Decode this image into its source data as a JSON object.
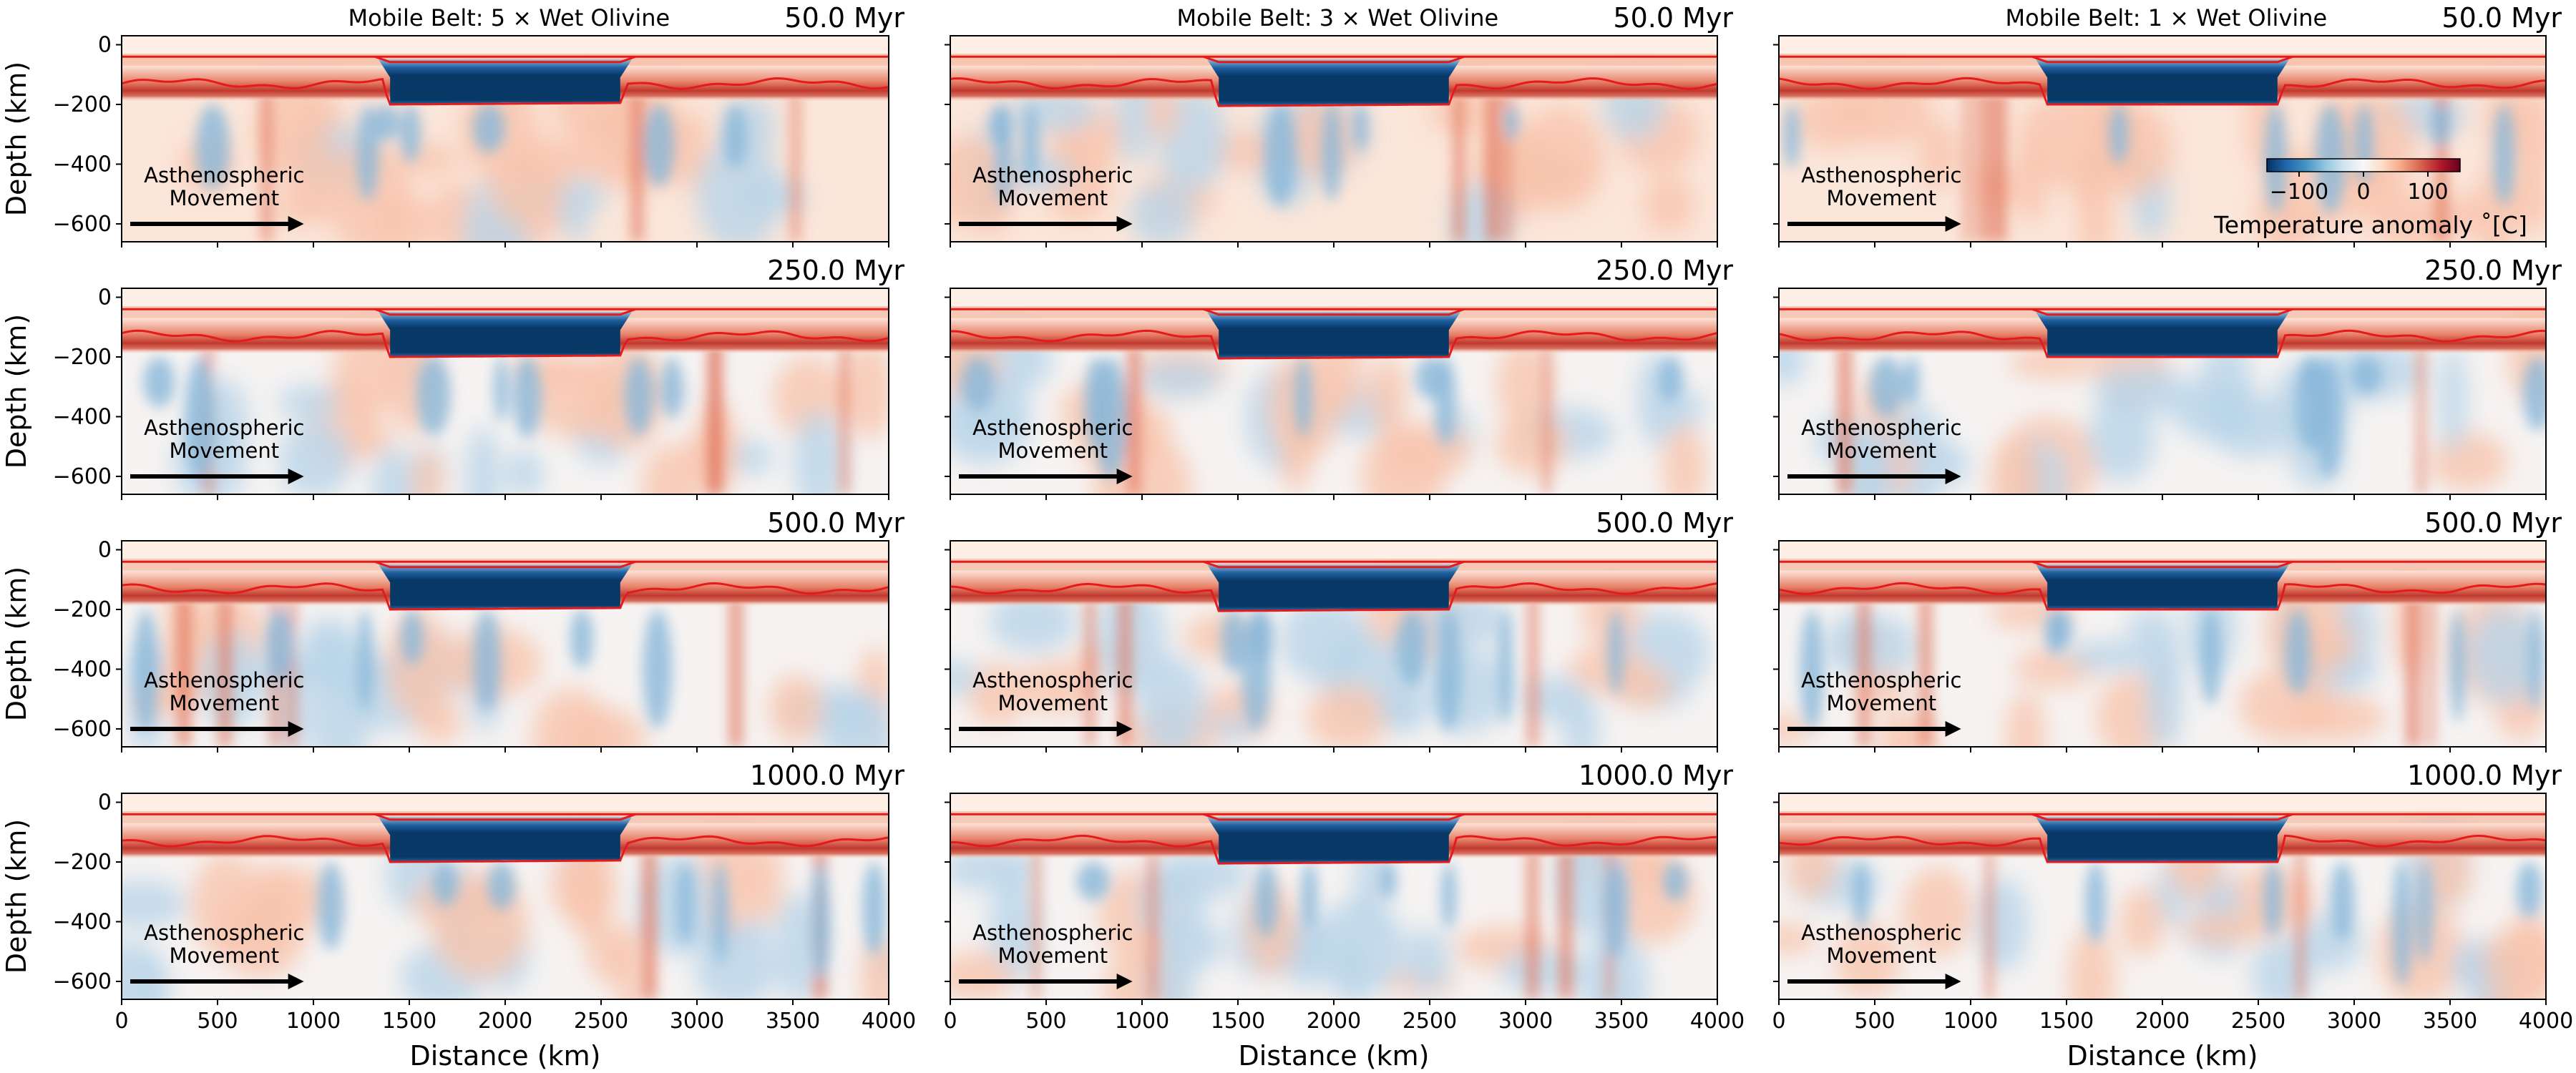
{
  "chart_data": {
    "type": "heatmap",
    "description_layout": "3 columns x 4 rows grid of temperature-anomaly cross sections",
    "columns": [
      {
        "title": "Mobile Belt: 5 × Wet Olivine",
        "craton_base": [
          [
            1400,
            -200
          ],
          [
            2600,
            -195
          ]
        ]
      },
      {
        "title": "Mobile Belt: 3 × Wet Olivine",
        "craton_base": [
          [
            1400,
            -205
          ],
          [
            2600,
            -200
          ]
        ]
      },
      {
        "title": "Mobile Belt: 1 × Wet Olivine",
        "craton_base": [
          [
            1400,
            -200
          ],
          [
            2600,
            -200
          ]
        ]
      }
    ],
    "rows": [
      {
        "time_label": "50.0 Myr"
      },
      {
        "time_label": "250.0 Myr"
      },
      {
        "time_label": "500.0 Myr"
      },
      {
        "time_label": "1000.0 Myr"
      }
    ],
    "xlabel": "Distance (km)",
    "ylabel": "Depth (km)",
    "xlim": [
      0,
      4000
    ],
    "ylim": [
      -660,
      30
    ],
    "x_ticks": [
      0,
      500,
      1000,
      1500,
      2000,
      2500,
      3000,
      3500,
      4000
    ],
    "y_ticks": [
      0,
      -200,
      -400,
      -600
    ],
    "craton_extent_km": [
      1400,
      2600
    ],
    "lithosphere_base_km": -130,
    "crust_line_km": -40,
    "arrow_label": "Asthenospheric\nMovement",
    "arrow_label_lines": [
      "Asthenospheric",
      "Movement"
    ],
    "arrow_x_km": [
      0,
      950
    ],
    "arrow_y_km": -600,
    "colorbar": {
      "label": "Temperature anomaly ˚[C]",
      "ticks": [
        -100,
        0,
        100
      ],
      "range": [
        -150,
        150
      ],
      "cmap": "RdBu_r",
      "colors": {
        "low": "#053061",
        "mid": "#f7f7f7",
        "high": "#67001f"
      }
    },
    "red_line_color": "#e41a1c"
  }
}
